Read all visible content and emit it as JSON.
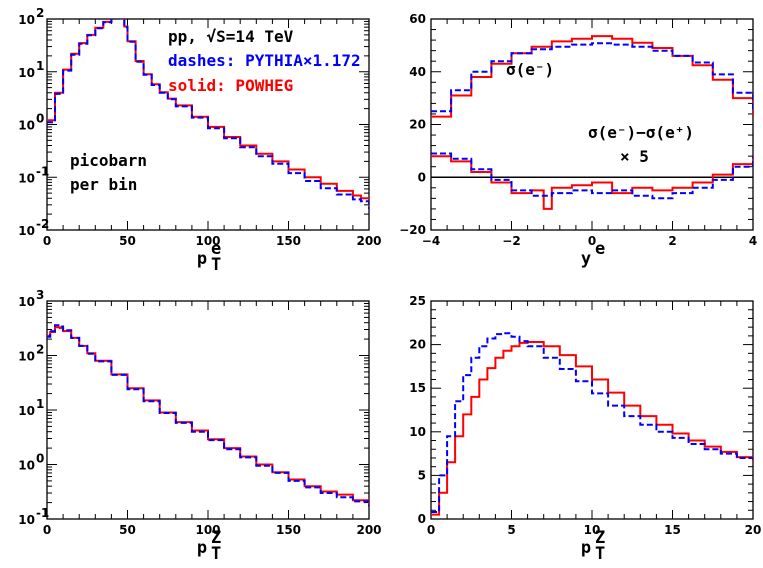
{
  "chart_data": [
    {
      "type": "line",
      "panel": "top-left",
      "xlabel": "p_T^e",
      "xlabel_main": "p",
      "xlabel_sup": "e",
      "xlabel_sub": "T",
      "xlim": [
        0,
        200
      ],
      "ylog": true,
      "ylim": [
        0.01,
        100
      ],
      "x_ticks": [
        "0",
        "50",
        "100",
        "150",
        "200"
      ],
      "y_ticks": [
        {
          "v": 0.01,
          "base": "10",
          "exp": "-2"
        },
        {
          "v": 0.1,
          "base": "10",
          "exp": "-1"
        },
        {
          "v": 1,
          "base": "10",
          "exp": "0"
        },
        {
          "v": 10,
          "base": "10",
          "exp": "1"
        },
        {
          "v": 100,
          "base": "10",
          "exp": "2"
        }
      ],
      "annotations": {
        "line1": "pp, √S=14 TeV",
        "line2": "dashes: PYTHIA×1.172",
        "line3": "solid: POWHEG",
        "line4": "picobarn",
        "line5": "per bin"
      },
      "series": [
        {
          "name": "POWHEG",
          "color": "#ff0000",
          "dash": false,
          "x": [
            0,
            5,
            10,
            15,
            20,
            25,
            30,
            35,
            40,
            42,
            44,
            45,
            46,
            48,
            50,
            55,
            60,
            65,
            70,
            75,
            80,
            90,
            100,
            110,
            120,
            130,
            140,
            150,
            160,
            170,
            180,
            190,
            195,
            200
          ],
          "y": [
            1.2,
            4,
            11,
            22,
            35,
            50,
            68,
            88,
            108,
            116,
            120,
            118,
            104,
            72,
            38,
            16,
            9,
            5.8,
            4.1,
            3.1,
            2.3,
            1.4,
            0.9,
            0.58,
            0.4,
            0.28,
            0.2,
            0.14,
            0.1,
            0.075,
            0.055,
            0.045,
            0.04,
            0.03
          ]
        },
        {
          "name": "PYTHIA",
          "color": "#0000ff",
          "dash": true,
          "x": [
            0,
            5,
            10,
            15,
            20,
            25,
            30,
            35,
            40,
            42,
            44,
            45,
            46,
            48,
            50,
            55,
            60,
            65,
            70,
            75,
            80,
            90,
            100,
            110,
            120,
            130,
            140,
            150,
            160,
            170,
            180,
            190,
            195,
            200
          ],
          "y": [
            1.1,
            3.8,
            10.5,
            21,
            34,
            49,
            67,
            87,
            107,
            114,
            118,
            116,
            102,
            70,
            37,
            15.5,
            8.8,
            5.6,
            4.0,
            3.0,
            2.2,
            1.35,
            0.85,
            0.55,
            0.37,
            0.25,
            0.18,
            0.12,
            0.085,
            0.062,
            0.047,
            0.038,
            0.035,
            0.025
          ]
        }
      ]
    },
    {
      "type": "line",
      "panel": "top-right",
      "xlabel": "y^e",
      "xlabel_main": "y",
      "xlabel_sup": "e",
      "xlim": [
        -4,
        4
      ],
      "ylim": [
        -20,
        60
      ],
      "x_ticks": [
        "−4",
        "−2",
        "0",
        "2",
        "4"
      ],
      "y_ticks": [
        "−20",
        "0",
        "20",
        "40",
        "60"
      ],
      "hline": 0,
      "annotations": {
        "sigma_label": "σ(e⁻)",
        "diff_label": "σ(e⁻)−σ(e⁺)",
        "times_label": "× 5"
      },
      "series": [
        {
          "name": "POWHEG σ(e-)",
          "color": "#ff0000",
          "dash": false,
          "x": [
            -4,
            -3.5,
            -3,
            -2.5,
            -2,
            -1.5,
            -1,
            -0.5,
            0,
            0.5,
            1,
            1.5,
            2,
            2.5,
            3,
            3.5,
            4
          ],
          "y": [
            23,
            31,
            38,
            43,
            47,
            49.5,
            51.5,
            52.5,
            53.5,
            52.5,
            51,
            49,
            46,
            42.5,
            37,
            30,
            23
          ]
        },
        {
          "name": "PYTHIA σ(e-)",
          "color": "#0000ff",
          "dash": true,
          "x": [
            -4,
            -3.5,
            -3,
            -2.5,
            -2,
            -1.5,
            -1,
            -0.5,
            0,
            0.5,
            1,
            1.5,
            2,
            2.5,
            3,
            3.5,
            4
          ],
          "y": [
            25,
            33,
            40,
            44,
            47,
            48.5,
            49.5,
            50.3,
            50.8,
            50.3,
            49.5,
            48,
            46,
            43.5,
            39,
            32,
            25
          ]
        },
        {
          "name": "POWHEG diff×5",
          "color": "#ff0000",
          "dash": false,
          "x": [
            -4,
            -3.5,
            -3,
            -2.5,
            -2,
            -1.5,
            -1.2,
            -1,
            -0.5,
            0,
            0.5,
            1,
            1.5,
            2,
            2.5,
            3,
            3.5,
            4
          ],
          "y": [
            8,
            6,
            2,
            -2,
            -6,
            -5,
            -12,
            -4,
            -3,
            -2,
            -6,
            -4,
            -5,
            -4,
            -2,
            1,
            5,
            8
          ]
        },
        {
          "name": "PYTHIA diff×5",
          "color": "#0000ff",
          "dash": true,
          "x": [
            -4,
            -3.5,
            -3,
            -2.5,
            -2,
            -1.5,
            -1,
            -0.5,
            0,
            0.5,
            1,
            1.5,
            2,
            2.5,
            3,
            3.5,
            4
          ],
          "y": [
            9,
            7,
            3,
            -1,
            -5,
            -7,
            -6,
            -5,
            -6,
            -5,
            -7,
            -8,
            -6,
            -4,
            -1,
            4,
            8
          ]
        }
      ]
    },
    {
      "type": "line",
      "panel": "bottom-left",
      "xlabel": "p_T^Z",
      "xlabel_main": "p",
      "xlabel_sup": "Z",
      "xlabel_sub": "T",
      "xlim": [
        0,
        200
      ],
      "ylog": true,
      "ylim": [
        0.1,
        1000
      ],
      "x_ticks": [
        "0",
        "50",
        "100",
        "150",
        "200"
      ],
      "y_ticks": [
        {
          "v": 0.1,
          "base": "10",
          "exp": "-1"
        },
        {
          "v": 1,
          "base": "10",
          "exp": "0"
        },
        {
          "v": 10,
          "base": "10",
          "exp": "1"
        },
        {
          "v": 100,
          "base": "10",
          "exp": "2"
        },
        {
          "v": 1000,
          "base": "10",
          "exp": "3"
        }
      ],
      "series": [
        {
          "name": "POWHEG",
          "color": "#ff0000",
          "dash": false,
          "x": [
            0,
            2,
            5,
            8,
            10,
            15,
            20,
            25,
            30,
            40,
            50,
            60,
            70,
            80,
            90,
            100,
            110,
            120,
            130,
            140,
            150,
            160,
            170,
            180,
            190,
            200
          ],
          "y": [
            230,
            270,
            330,
            320,
            280,
            210,
            150,
            110,
            80,
            45,
            25,
            15,
            9,
            6,
            4.2,
            2.9,
            2.0,
            1.4,
            1.0,
            0.72,
            0.53,
            0.4,
            0.32,
            0.28,
            0.22,
            0.18
          ]
        },
        {
          "name": "PYTHIA",
          "color": "#0000ff",
          "dash": true,
          "x": [
            0,
            2,
            5,
            8,
            10,
            15,
            20,
            25,
            30,
            40,
            50,
            60,
            70,
            80,
            90,
            100,
            110,
            120,
            130,
            140,
            150,
            160,
            170,
            180,
            190,
            200
          ],
          "y": [
            220,
            280,
            360,
            340,
            290,
            210,
            150,
            108,
            78,
            44,
            24,
            14.5,
            8.8,
            5.8,
            4.0,
            2.8,
            1.9,
            1.35,
            0.95,
            0.7,
            0.5,
            0.38,
            0.3,
            0.25,
            0.21,
            0.17
          ]
        }
      ]
    },
    {
      "type": "line",
      "panel": "bottom-right",
      "xlabel": "p_T^Z",
      "xlabel_main": "p",
      "xlabel_sup": "Z",
      "xlabel_sub": "T",
      "xlim": [
        0,
        20
      ],
      "ylim": [
        0,
        25
      ],
      "x_ticks": [
        "0",
        "5",
        "10",
        "15",
        "20"
      ],
      "y_ticks": [
        "0",
        "5",
        "10",
        "15",
        "20",
        "25"
      ],
      "series": [
        {
          "name": "POWHEG",
          "color": "#ff0000",
          "dash": false,
          "x": [
            0,
            0.5,
            1,
            1.5,
            2,
            2.5,
            3,
            3.5,
            4,
            4.5,
            5,
            5.5,
            6,
            7,
            8,
            9,
            10,
            11,
            12,
            13,
            14,
            15,
            16,
            17,
            18,
            19,
            20
          ],
          "y": [
            0.5,
            3,
            6.5,
            9.5,
            12,
            14,
            16,
            17.3,
            18.5,
            19.3,
            19.8,
            20.2,
            20.3,
            19.8,
            18.8,
            17.5,
            16,
            14.5,
            13,
            11.8,
            10.8,
            9.8,
            9,
            8.3,
            7.7,
            7.1,
            6.6
          ]
        },
        {
          "name": "PYTHIA",
          "color": "#0000ff",
          "dash": true,
          "x": [
            0,
            0.5,
            1,
            1.5,
            2,
            2.5,
            3,
            3.5,
            4,
            4.5,
            5,
            5.5,
            6,
            7,
            8,
            9,
            10,
            11,
            12,
            13,
            14,
            15,
            16,
            17,
            18,
            19,
            20
          ],
          "y": [
            0.8,
            5,
            9.5,
            13.5,
            16.5,
            18.5,
            19.8,
            20.7,
            21.2,
            21.3,
            20.9,
            20.4,
            19.8,
            18.5,
            17.2,
            15.8,
            14.4,
            13,
            11.8,
            10.8,
            10,
            9.3,
            8.6,
            8,
            7.5,
            7,
            6.6
          ]
        }
      ]
    }
  ]
}
